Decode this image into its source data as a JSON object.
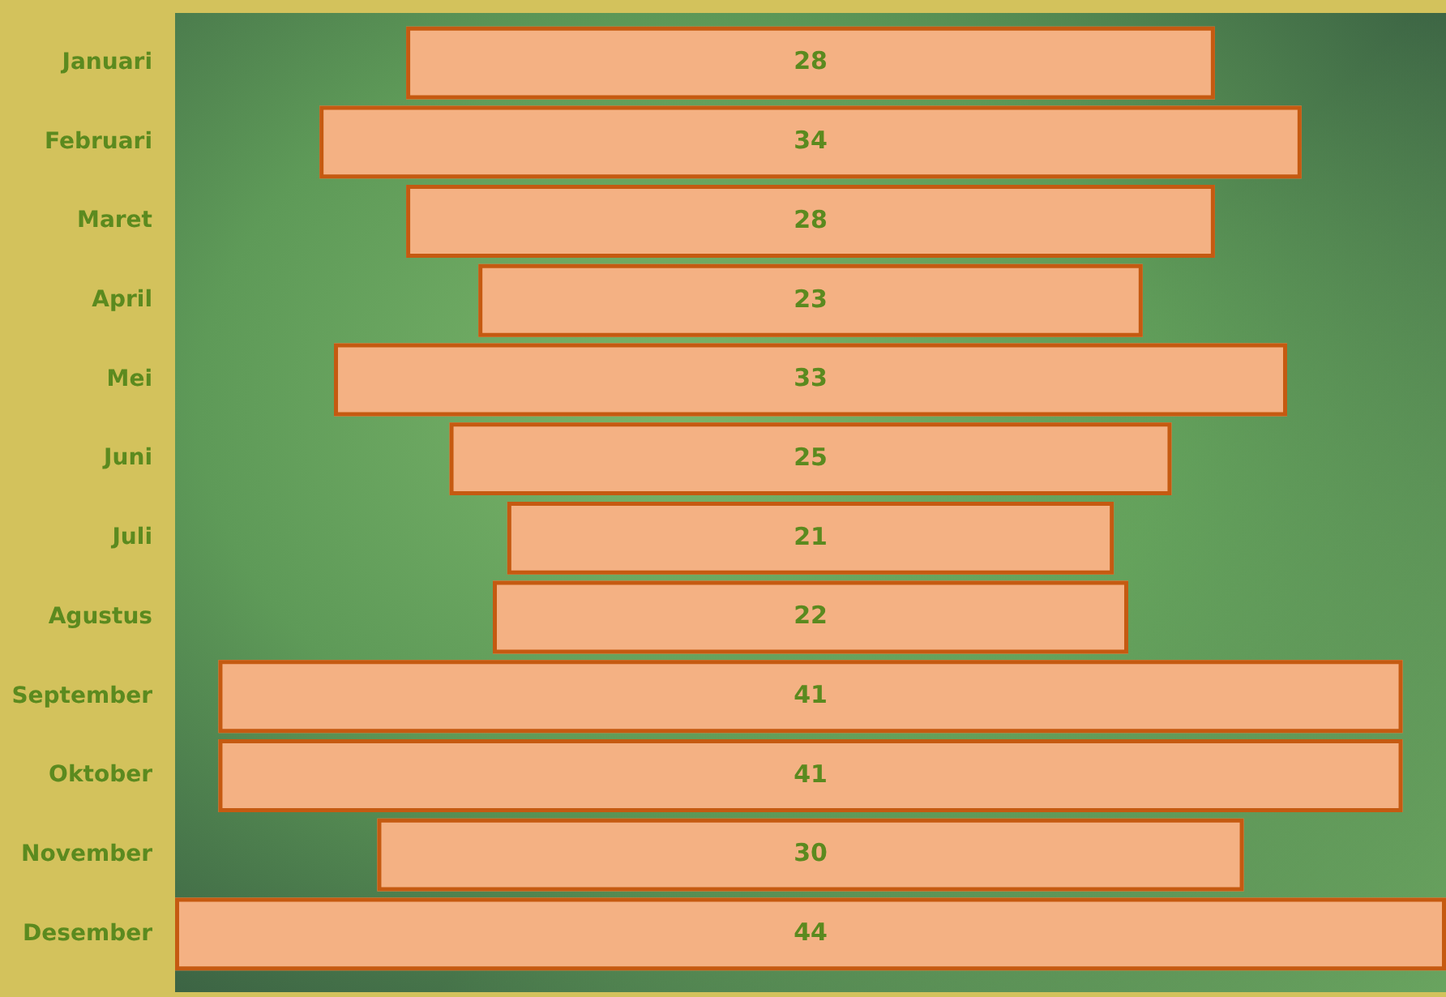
{
  "chart_data": {
    "type": "other",
    "categories": [
      "Januari",
      "Februari",
      "Maret",
      "April",
      "Mei",
      "Juni",
      "Juli",
      "Agustus",
      "September",
      "Oktober",
      "November",
      "Desember"
    ],
    "values": [
      28,
      34,
      28,
      23,
      33,
      25,
      21,
      22,
      41,
      41,
      30,
      44
    ],
    "color": "#f4b183",
    "data_labels": true
  }
}
